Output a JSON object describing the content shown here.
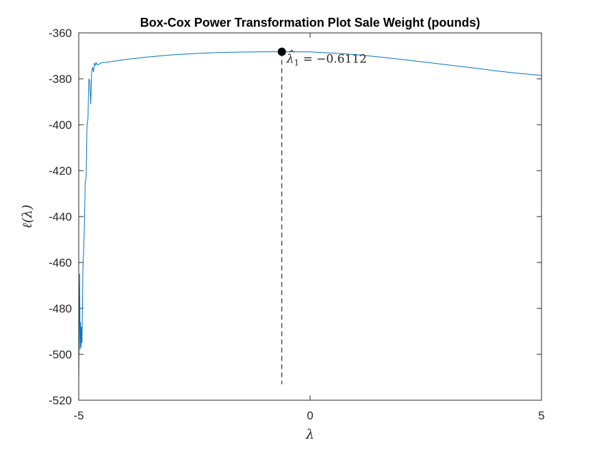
{
  "chart_data": {
    "type": "line",
    "title": "Box-Cox Power Transformation Plot Sale Weight (pounds)",
    "xlabel": "λ",
    "ylabel": "ℓ(λ)",
    "xlim": [
      -5,
      5
    ],
    "ylim": [
      -520,
      -360
    ],
    "xticks": [
      -5,
      0,
      5
    ],
    "yticks": [
      -520,
      -500,
      -480,
      -460,
      -440,
      -420,
      -400,
      -380,
      -360
    ],
    "grid": false,
    "series": [
      {
        "color": "#0072BD",
        "x": [
          -5.0,
          -4.98,
          -4.97,
          -4.96,
          -4.95,
          -4.94,
          -4.93,
          -4.92,
          -4.91,
          -4.9,
          -4.88,
          -4.86,
          -4.84,
          -4.82,
          -4.8,
          -4.78,
          -4.76,
          -4.74,
          -4.72,
          -4.7,
          -4.68,
          -4.66,
          -4.64,
          -4.62,
          -4.6,
          -4.55,
          -4.5,
          -4.4,
          -4.2,
          -4.0,
          -3.5,
          -3.0,
          -2.5,
          -2.0,
          -1.5,
          -1.0,
          -0.6112,
          0.0,
          0.5,
          1.0,
          1.5,
          2.0,
          2.5,
          3.0,
          3.5,
          4.0,
          4.5,
          5.0
        ],
        "y": [
          -512,
          -465,
          -498,
          -486,
          -497,
          -488,
          -495,
          -480,
          -463,
          -458,
          -446,
          -425,
          -423,
          -400,
          -397,
          -380,
          -381,
          -391,
          -377,
          -375,
          -377,
          -373,
          -374,
          -373,
          -374,
          -373.5,
          -373,
          -372.8,
          -372.2,
          -371.6,
          -370.5,
          -369.6,
          -369.0,
          -368.6,
          -368.35,
          -368.25,
          -368.2,
          -368.3,
          -368.8,
          -369.5,
          -370.5,
          -371.6,
          -372.8,
          -374.0,
          -375.2,
          -376.5,
          -377.6,
          -378.5
        ]
      }
    ],
    "annotation": {
      "x": -0.6112,
      "y": -368.2,
      "label": "λ̂₁ = −0.6112",
      "label_lambda": "λ",
      "label_subscript": "1",
      "label_rest": " = −0.6112",
      "dashed_line_to_y": -513
    }
  }
}
